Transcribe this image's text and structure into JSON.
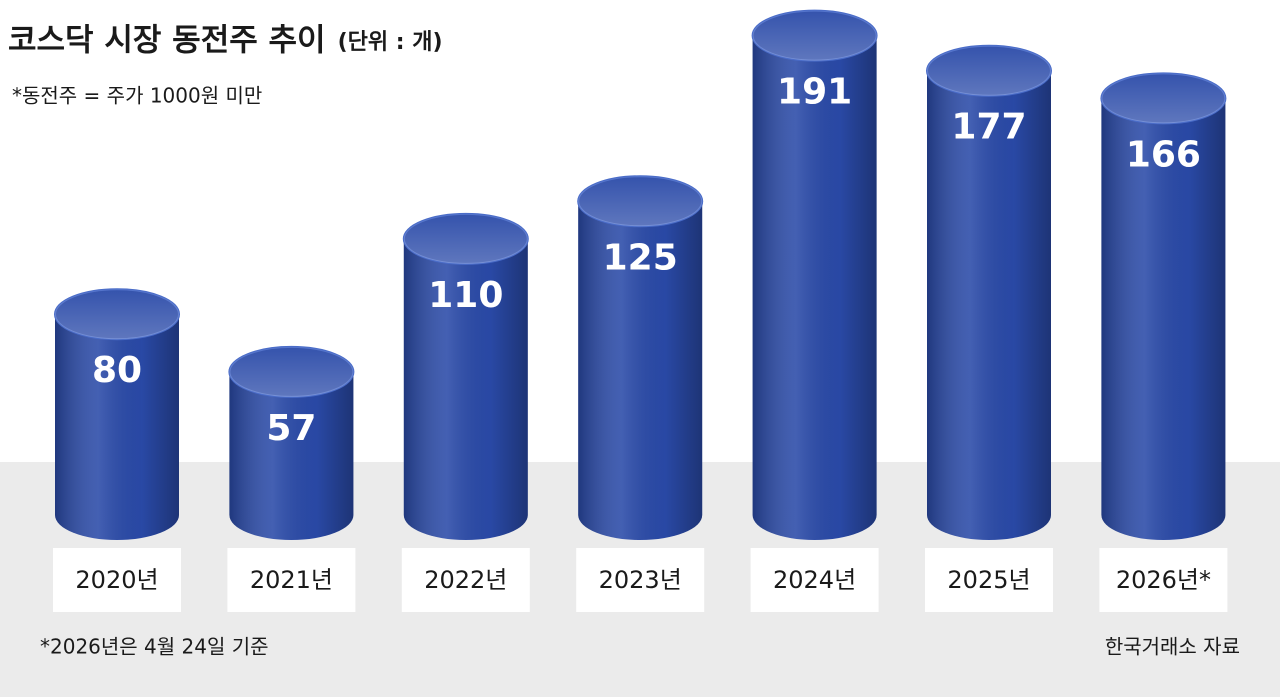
{
  "chart_data": {
    "type": "bar",
    "title": "코스닥 시장 동전주 추이",
    "subtitle": "(단위 : 개)",
    "note": "*동전주 = 주가 1000원 미만",
    "categories": [
      "2020년",
      "2021년",
      "2022년",
      "2023년",
      "2024년",
      "2025년",
      "2026년*"
    ],
    "values": [
      80,
      57,
      110,
      125,
      191,
      177,
      166
    ],
    "color": "#2a4aa8",
    "footnote": "*2026년은 4월 24일 기준",
    "source": "한국거래소 자료"
  }
}
